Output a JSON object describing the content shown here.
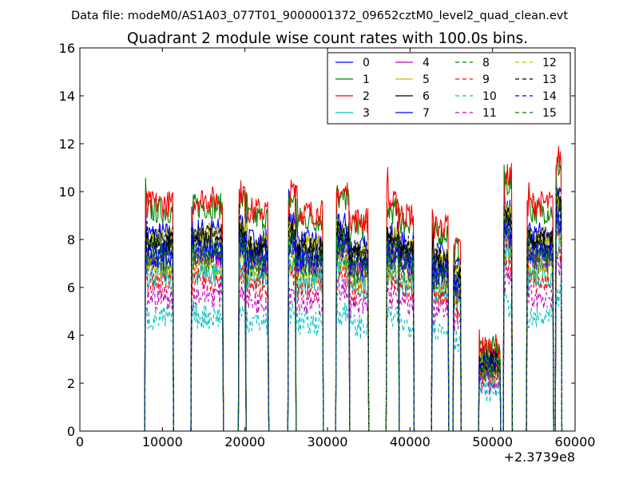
{
  "chart_data": {
    "type": "line",
    "suptitle": "Data file: modeM0/AS1A03_077T01_9000001372_09652cztM0_level2_quad_clean.evt",
    "title": "Quadrant 2 module wise count rates with 100.0s bins.",
    "xlabel": "",
    "ylabel": "",
    "x_offset_label": "+2.3739e8",
    "xlim": [
      0,
      60000
    ],
    "ylim": [
      0,
      16
    ],
    "x_ticks": [
      0,
      10000,
      20000,
      30000,
      40000,
      50000,
      60000
    ],
    "y_ticks": [
      0,
      2,
      4,
      6,
      8,
      10,
      12,
      14,
      16
    ],
    "grid": false,
    "legend_position": "top-right",
    "legend_columns": 4,
    "intervals": [
      {
        "x": [
          7950,
          11250
        ],
        "f": 1.0
      },
      {
        "x": [
          13550,
          17300
        ],
        "f": 1.02
      },
      {
        "x": [
          19300,
          20050
        ],
        "f": 1.05
      },
      {
        "x": [
          20050,
          22800
        ],
        "f": 0.97
      },
      {
        "x": [
          25300,
          26100
        ],
        "f": 1.05
      },
      {
        "x": [
          26100,
          29400
        ],
        "f": 0.96
      },
      {
        "x": [
          31100,
          32600
        ],
        "f": 1.05
      },
      {
        "x": [
          32600,
          34900
        ],
        "f": 0.93
      },
      {
        "x": [
          37200,
          38600
        ],
        "f": 1.0
      },
      {
        "x": [
          38600,
          40400
        ],
        "f": 0.95
      },
      {
        "x": [
          42700,
          44600
        ],
        "f": 0.9
      },
      {
        "x": [
          45300,
          46100
        ],
        "f": 0.82
      },
      {
        "x": [
          48400,
          50900
        ],
        "f": 0.37
      },
      {
        "x": [
          51400,
          52300
        ],
        "f": 1.12
      },
      {
        "x": [
          54200,
          57300
        ],
        "f": 1.0
      },
      {
        "x": [
          57700,
          58300
        ],
        "f": 1.2
      }
    ],
    "series": [
      {
        "name": "0",
        "color": "#0000ff",
        "style": "solid",
        "level": 8.2
      },
      {
        "name": "1",
        "color": "#008000",
        "style": "solid",
        "level": 9.2
      },
      {
        "name": "2",
        "color": "#ff0000",
        "style": "solid",
        "level": 9.5
      },
      {
        "name": "3",
        "color": "#00bfbf",
        "style": "solid",
        "level": 6.5
      },
      {
        "name": "4",
        "color": "#bf00bf",
        "style": "solid",
        "level": 7.2
      },
      {
        "name": "5",
        "color": "#bfbf00",
        "style": "solid",
        "level": 8.0
      },
      {
        "name": "6",
        "color": "#000000",
        "style": "solid",
        "level": 7.8
      },
      {
        "name": "7",
        "color": "#0000ff",
        "style": "solid",
        "level": 7.3
      },
      {
        "name": "8",
        "color": "#008000",
        "style": "dashed",
        "level": 7.6
      },
      {
        "name": "9",
        "color": "#ff0000",
        "style": "dashed",
        "level": 6.2
      },
      {
        "name": "10",
        "color": "#00bfbf",
        "style": "dashed",
        "level": 4.7
      },
      {
        "name": "11",
        "color": "#bf00bf",
        "style": "dashed",
        "level": 5.6
      },
      {
        "name": "12",
        "color": "#bfbf00",
        "style": "dashed",
        "level": 6.8
      },
      {
        "name": "13",
        "color": "#000000",
        "style": "dashed",
        "level": 8.0
      },
      {
        "name": "14",
        "color": "#0000ff",
        "style": "dashed",
        "level": 7.4
      },
      {
        "name": "15",
        "color": "#008000",
        "style": "dashed",
        "level": 7.1
      }
    ]
  }
}
